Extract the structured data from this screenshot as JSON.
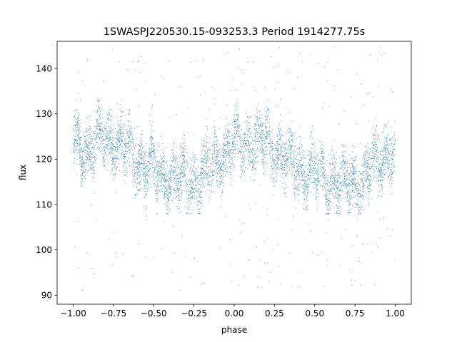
{
  "chart_data": {
    "type": "scatter",
    "title": "1SWASPJ220530.15-093253.3 Period 1914277.75s",
    "xlabel": "phase",
    "ylabel": "flux",
    "xlim": [
      -1.1,
      1.1
    ],
    "ylim": [
      88,
      146
    ],
    "xticks": [
      -1.0,
      -0.75,
      -0.5,
      -0.25,
      0.0,
      0.25,
      0.5,
      0.75,
      1.0
    ],
    "xtick_labels": [
      "−1.00",
      "−0.75",
      "−0.50",
      "−0.25",
      "0.00",
      "0.25",
      "0.50",
      "0.75",
      "1.00"
    ],
    "yticks": [
      90,
      100,
      110,
      120,
      130,
      140
    ],
    "ytick_labels": [
      "90",
      "100",
      "110",
      "120",
      "130",
      "140"
    ],
    "grid": false,
    "legend": "none",
    "series": [
      {
        "color": "#1f77b4",
        "x_range": [
          -1.0,
          1.0
        ],
        "trend_phase": [
          -1.0,
          -0.9,
          -0.8,
          -0.7,
          -0.6,
          -0.5,
          -0.4,
          -0.3,
          -0.2,
          -0.1,
          0.0,
          0.1,
          0.2,
          0.3,
          0.4,
          0.5,
          0.6,
          0.7,
          0.8,
          0.9,
          1.0
        ],
        "trend_flux": [
          124,
          122,
          125,
          123,
          120,
          118,
          116,
          115,
          116,
          120,
          123,
          124,
          124,
          121,
          118,
          117,
          115,
          115,
          116,
          120,
          122
        ],
        "scatter_band": [
          112,
          131
        ],
        "outlier_range": [
          91,
          145
        ]
      }
    ]
  }
}
